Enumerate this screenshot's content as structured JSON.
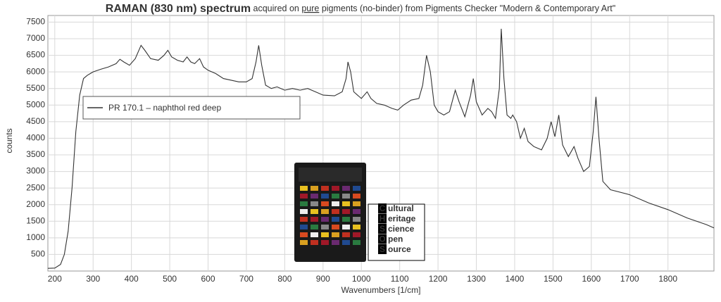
{
  "chart_data": {
    "type": "line",
    "title_parts": [
      "RAMAN (830 nm) spectrum",
      " acquired on ",
      "pure",
      " pigments (no-binder) from Pigments Checker \"Modern & Contemporary Art\""
    ],
    "xlabel": "Wavenumbers [1/cm]",
    "ylabel": "counts",
    "xlim": [
      182,
      1920
    ],
    "ylim": [
      0,
      7700
    ],
    "xticks": [
      200,
      300,
      400,
      500,
      600,
      700,
      800,
      900,
      1000,
      1100,
      1200,
      1300,
      1400,
      1500,
      1600,
      1700,
      1800
    ],
    "yticks": [
      500,
      1000,
      1500,
      2000,
      2500,
      3000,
      3500,
      4000,
      4500,
      5000,
      5500,
      6000,
      6500,
      7000,
      7500
    ],
    "grid": true,
    "legend": "upper left",
    "x": [
      182,
      200,
      215,
      225,
      235,
      245,
      255,
      265,
      275,
      285,
      300,
      320,
      340,
      360,
      370,
      380,
      395,
      410,
      425,
      435,
      450,
      470,
      485,
      495,
      505,
      520,
      535,
      545,
      555,
      565,
      578,
      588,
      600,
      620,
      640,
      660,
      680,
      700,
      715,
      725,
      732,
      740,
      750,
      765,
      780,
      800,
      820,
      840,
      860,
      880,
      900,
      930,
      950,
      960,
      965,
      972,
      980,
      1000,
      1015,
      1025,
      1040,
      1060,
      1080,
      1095,
      1110,
      1130,
      1150,
      1160,
      1170,
      1180,
      1190,
      1200,
      1215,
      1230,
      1245,
      1255,
      1270,
      1285,
      1292,
      1300,
      1315,
      1330,
      1340,
      1350,
      1360,
      1365,
      1372,
      1380,
      1390,
      1395,
      1405,
      1415,
      1425,
      1435,
      1450,
      1470,
      1485,
      1495,
      1505,
      1515,
      1525,
      1540,
      1555,
      1565,
      1580,
      1595,
      1605,
      1612,
      1620,
      1630,
      1650,
      1700,
      1750,
      1800,
      1850,
      1900,
      1920
    ],
    "series": [
      {
        "name": "PR 170.1 – naphthol red deep",
        "color": "#333333",
        "values": [
          80,
          90,
          200,
          500,
          1200,
          2500,
          4200,
          5300,
          5800,
          5900,
          6000,
          6080,
          6150,
          6250,
          6380,
          6300,
          6200,
          6400,
          6800,
          6650,
          6400,
          6350,
          6500,
          6650,
          6450,
          6350,
          6300,
          6450,
          6300,
          6250,
          6400,
          6150,
          6050,
          5950,
          5800,
          5750,
          5700,
          5700,
          5800,
          6300,
          6800,
          6200,
          5600,
          5500,
          5550,
          5450,
          5500,
          5450,
          5500,
          5400,
          5300,
          5280,
          5400,
          5800,
          6300,
          6000,
          5400,
          5200,
          5400,
          5200,
          5050,
          5000,
          4900,
          4850,
          5000,
          5150,
          5200,
          5600,
          6500,
          6000,
          5000,
          4800,
          4700,
          4800,
          5450,
          5100,
          4650,
          5300,
          5800,
          5100,
          4700,
          4900,
          4800,
          4600,
          5500,
          7300,
          5800,
          4700,
          4600,
          4700,
          4500,
          4000,
          4300,
          3900,
          3750,
          3650,
          4000,
          4500,
          4050,
          4700,
          3800,
          3450,
          3750,
          3400,
          3000,
          3150,
          4200,
          5250,
          4000,
          2700,
          2450,
          2300,
          2050,
          1850,
          1600,
          1400,
          1300
        ]
      }
    ],
    "logo": {
      "initials": [
        "C",
        "H",
        "S",
        "O",
        "S"
      ],
      "words": [
        "ultural",
        "eritage",
        "cience",
        "pen",
        "ource"
      ]
    }
  }
}
